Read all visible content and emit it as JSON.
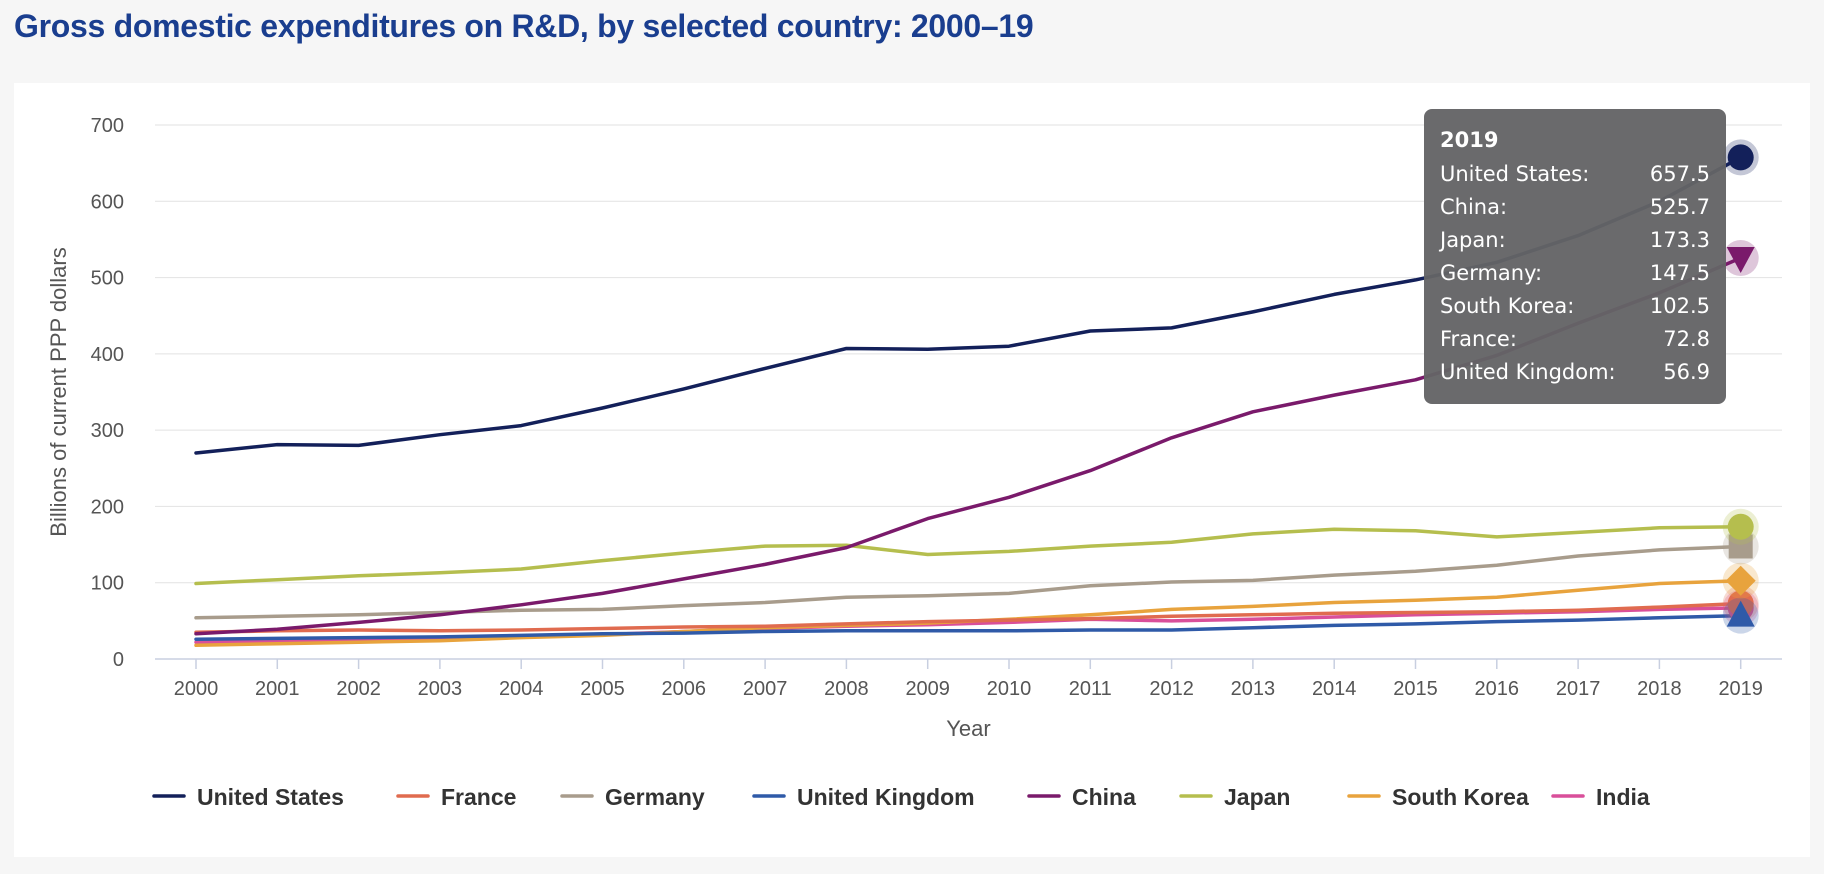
{
  "page": {
    "title": "Gross domestic expenditures on R&D, by selected country: 2000–19"
  },
  "chart_data": {
    "type": "line",
    "title": "Gross domestic expenditures on R&D, by selected country: 2000–19",
    "xlabel": "Year",
    "ylabel": "Billions of current PPP dollars",
    "ylim": [
      0,
      700
    ],
    "yticks": [
      0,
      100,
      200,
      300,
      400,
      500,
      600,
      700
    ],
    "categories": [
      "2000",
      "2001",
      "2002",
      "2003",
      "2004",
      "2005",
      "2006",
      "2007",
      "2008",
      "2009",
      "2010",
      "2011",
      "2012",
      "2013",
      "2014",
      "2015",
      "2016",
      "2017",
      "2018",
      "2019"
    ],
    "grid": true,
    "legend_position": "bottom",
    "series": [
      {
        "name": "United States",
        "color": "#13205a",
        "marker": "circle",
        "values": [
          270,
          281,
          280,
          294,
          306,
          329,
          354,
          381,
          407,
          406,
          410,
          430,
          434,
          455,
          478,
          497,
          520,
          555,
          600,
          657.5
        ]
      },
      {
        "name": "France",
        "color": "#e06b4f",
        "marker": "circle",
        "values": [
          35,
          37,
          38,
          37,
          38,
          40,
          42,
          43,
          46,
          49,
          51,
          53,
          56,
          58,
          60,
          61,
          62,
          64,
          68,
          72.8
        ]
      },
      {
        "name": "Germany",
        "color": "#a89c8c",
        "marker": "square",
        "values": [
          54,
          56,
          58,
          61,
          64,
          65,
          70,
          74,
          81,
          83,
          86,
          96,
          101,
          103,
          110,
          115,
          123,
          135,
          143,
          147.5
        ]
      },
      {
        "name": "United Kingdom",
        "color": "#2f5aa8",
        "marker": "triangle",
        "values": [
          26,
          27,
          28,
          29,
          31,
          33,
          34,
          36,
          37,
          37,
          37,
          38,
          38,
          41,
          44,
          46,
          49,
          51,
          54,
          56.9
        ]
      },
      {
        "name": "China",
        "color": "#7a1a6b",
        "marker": "triangle-down",
        "values": [
          33,
          39,
          48,
          58,
          71,
          86,
          105,
          124,
          146,
          184,
          212,
          247,
          290,
          324,
          346,
          366,
          398,
          440,
          480,
          525.7
        ]
      },
      {
        "name": "Japan",
        "color": "#b5be4e",
        "marker": "circle",
        "values": [
          99,
          104,
          109,
          113,
          118,
          129,
          139,
          148,
          149,
          137,
          141,
          148,
          153,
          164,
          170,
          168,
          160,
          166,
          172,
          173.3
        ]
      },
      {
        "name": "South Korea",
        "color": "#e8a33d",
        "marker": "diamond",
        "values": [
          18,
          20,
          22,
          24,
          28,
          31,
          36,
          41,
          44,
          47,
          52,
          58,
          65,
          69,
          74,
          77,
          81,
          90,
          99,
          102.5
        ]
      },
      {
        "name": "India",
        "color": "#d94f9a",
        "marker": "circle",
        "values": [
          22,
          23,
          24,
          26,
          29,
          32,
          36,
          40,
          43,
          45,
          48,
          52,
          50,
          52,
          55,
          58,
          60,
          62,
          65,
          67
        ]
      }
    ]
  },
  "tooltip": {
    "year": "2019",
    "rows": [
      {
        "label": "United States:",
        "value": "657.5"
      },
      {
        "label": "China:",
        "value": "525.7"
      },
      {
        "label": "Japan:",
        "value": "173.3"
      },
      {
        "label": "Germany:",
        "value": "147.5"
      },
      {
        "label": "South Korea:",
        "value": "102.5"
      },
      {
        "label": "France:",
        "value": "72.8"
      },
      {
        "label": "United Kingdom:",
        "value": "56.9"
      }
    ]
  }
}
